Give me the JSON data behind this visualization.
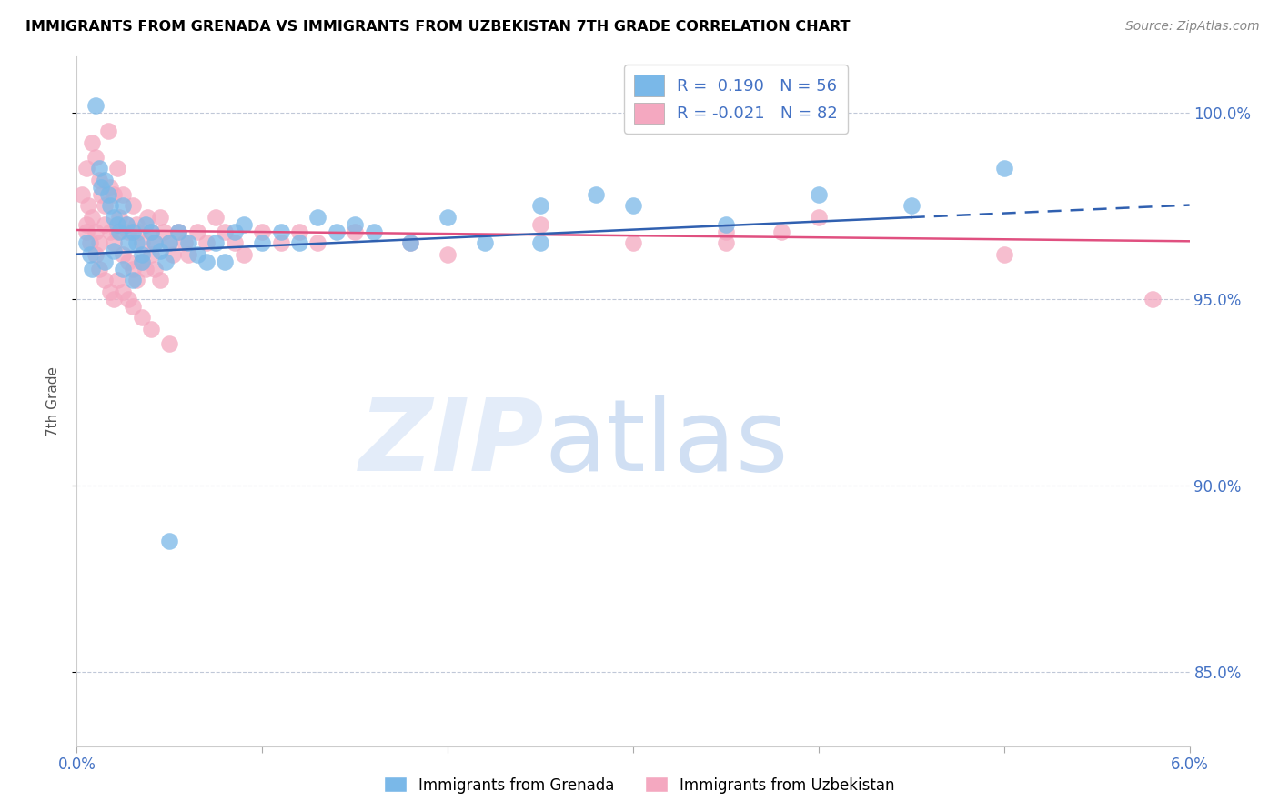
{
  "title": "IMMIGRANTS FROM GRENADA VS IMMIGRANTS FROM UZBEKISTAN 7TH GRADE CORRELATION CHART",
  "source": "Source: ZipAtlas.com",
  "ylabel": "7th Grade",
  "x_min": 0.0,
  "x_max": 6.0,
  "y_min": 83.0,
  "y_max": 101.5,
  "y_ticks": [
    85.0,
    90.0,
    95.0,
    100.0
  ],
  "y_tick_labels": [
    "85.0%",
    "90.0%",
    "95.0%",
    "100.0%"
  ],
  "x_ticks": [
    0.0,
    1.0,
    2.0,
    3.0,
    4.0,
    5.0,
    6.0
  ],
  "R_grenada": 0.19,
  "N_grenada": 56,
  "R_uzbekistan": -0.021,
  "N_uzbekistan": 82,
  "color_grenada": "#7ab8e8",
  "color_uzbekistan": "#f4a8c0",
  "color_line_grenada": "#3060b0",
  "color_line_uzbekistan": "#e05080",
  "grenada_x": [
    0.05,
    0.07,
    0.08,
    0.1,
    0.12,
    0.13,
    0.15,
    0.17,
    0.18,
    0.2,
    0.22,
    0.23,
    0.25,
    0.27,
    0.28,
    0.3,
    0.32,
    0.35,
    0.37,
    0.4,
    0.42,
    0.45,
    0.48,
    0.5,
    0.55,
    0.6,
    0.65,
    0.7,
    0.75,
    0.8,
    0.85,
    0.9,
    1.0,
    1.1,
    1.2,
    1.3,
    1.4,
    1.5,
    1.6,
    1.8,
    2.0,
    2.2,
    2.5,
    2.8,
    3.0,
    3.5,
    4.0,
    4.5,
    5.0,
    0.15,
    0.2,
    0.25,
    0.3,
    0.35,
    0.5,
    2.5
  ],
  "grenada_y": [
    96.5,
    96.2,
    95.8,
    100.2,
    98.5,
    98.0,
    98.2,
    97.8,
    97.5,
    97.2,
    97.0,
    96.8,
    97.5,
    97.0,
    96.5,
    96.8,
    96.5,
    96.2,
    97.0,
    96.8,
    96.5,
    96.3,
    96.0,
    96.5,
    96.8,
    96.5,
    96.2,
    96.0,
    96.5,
    96.0,
    96.8,
    97.0,
    96.5,
    96.8,
    96.5,
    97.2,
    96.8,
    97.0,
    96.8,
    96.5,
    97.2,
    96.5,
    97.5,
    97.8,
    97.5,
    97.0,
    97.8,
    97.5,
    98.5,
    96.0,
    96.3,
    95.8,
    95.5,
    96.0,
    88.5,
    96.5
  ],
  "uzbekistan_x": [
    0.03,
    0.05,
    0.06,
    0.08,
    0.1,
    0.12,
    0.13,
    0.15,
    0.17,
    0.18,
    0.2,
    0.22,
    0.23,
    0.25,
    0.27,
    0.28,
    0.3,
    0.32,
    0.33,
    0.35,
    0.38,
    0.4,
    0.42,
    0.45,
    0.47,
    0.5,
    0.52,
    0.55,
    0.58,
    0.6,
    0.65,
    0.7,
    0.75,
    0.8,
    0.85,
    0.9,
    1.0,
    1.1,
    1.2,
    1.3,
    1.5,
    1.8,
    2.0,
    2.5,
    3.0,
    3.5,
    4.0,
    5.0,
    5.8,
    0.05,
    0.08,
    0.1,
    0.12,
    0.15,
    0.18,
    0.2,
    0.22,
    0.25,
    0.28,
    0.3,
    0.32,
    0.35,
    0.37,
    0.4,
    0.42,
    0.45,
    0.05,
    0.07,
    0.1,
    0.12,
    0.15,
    0.18,
    0.2,
    0.22,
    0.25,
    0.28,
    0.3,
    0.35,
    0.4,
    0.5,
    3.5,
    3.8
  ],
  "uzbekistan_y": [
    97.8,
    98.5,
    97.5,
    99.2,
    98.8,
    98.2,
    97.8,
    97.5,
    99.5,
    98.0,
    97.8,
    98.5,
    97.2,
    97.8,
    97.0,
    96.8,
    97.5,
    97.0,
    96.8,
    96.5,
    97.2,
    96.8,
    96.5,
    97.2,
    96.8,
    96.5,
    96.2,
    96.8,
    96.5,
    96.2,
    96.8,
    96.5,
    97.2,
    96.8,
    96.5,
    96.2,
    96.8,
    96.5,
    96.8,
    96.5,
    96.8,
    96.5,
    96.2,
    97.0,
    96.5,
    96.8,
    97.2,
    96.2,
    95.0,
    97.0,
    97.2,
    96.8,
    96.5,
    97.0,
    96.8,
    96.5,
    96.8,
    96.2,
    96.0,
    95.8,
    95.5,
    96.0,
    95.8,
    96.2,
    95.8,
    95.5,
    96.8,
    96.5,
    96.2,
    95.8,
    95.5,
    95.2,
    95.0,
    95.5,
    95.2,
    95.0,
    94.8,
    94.5,
    94.2,
    93.8,
    96.5,
    96.8
  ]
}
